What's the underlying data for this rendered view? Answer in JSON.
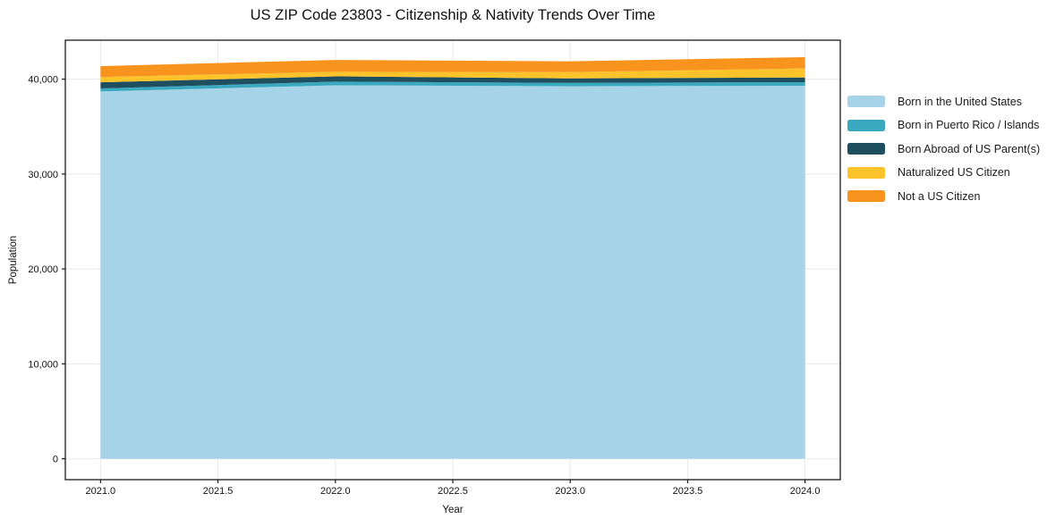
{
  "title": "US ZIP Code 23803 - Citizenship & Nativity Trends Over Time",
  "chart_data": {
    "type": "area",
    "stacked": true,
    "title": "US ZIP Code 23803 - Citizenship & Nativity Trends Over Time",
    "xlabel": "Year",
    "ylabel": "Population",
    "x": [
      2021,
      2022,
      2023,
      2024
    ],
    "series": [
      {
        "name": "Born in the United States",
        "color": "#A6D3E8",
        "values": [
          38700,
          39350,
          39250,
          39300
        ]
      },
      {
        "name": "Born in Puerto Rico / Islands",
        "color": "#3AA8BF",
        "values": [
          320,
          380,
          350,
          380
        ]
      },
      {
        "name": "Born Abroad of US Parent(s)",
        "color": "#1F4E5F",
        "values": [
          650,
          560,
          480,
          500
        ]
      },
      {
        "name": "Naturalized US Citizen",
        "color": "#FDC32B",
        "values": [
          550,
          480,
          650,
          950
        ]
      },
      {
        "name": "Not a US Citizen",
        "color": "#F8941E",
        "values": [
          1150,
          1250,
          1150,
          1180
        ]
      }
    ],
    "xlim": [
      2020.85,
      2024.15
    ],
    "ylim": [
      -2200,
      44100
    ],
    "xticks": {
      "values": [
        2021.0,
        2021.5,
        2022.0,
        2022.5,
        2023.0,
        2023.5,
        2024.0
      ],
      "labels": [
        "2021.0",
        "2021.5",
        "2022.0",
        "2022.5",
        "2023.0",
        "2023.5",
        "2024.0"
      ]
    },
    "yticks": {
      "values": [
        0,
        10000,
        20000,
        30000,
        40000
      ],
      "labels": [
        "0",
        "10,000",
        "20,000",
        "30,000",
        "40,000"
      ]
    },
    "grid": true,
    "grid_color": "#E8E8E8",
    "spine_color": "#1a1a1a",
    "legend_position": "outside-right"
  }
}
